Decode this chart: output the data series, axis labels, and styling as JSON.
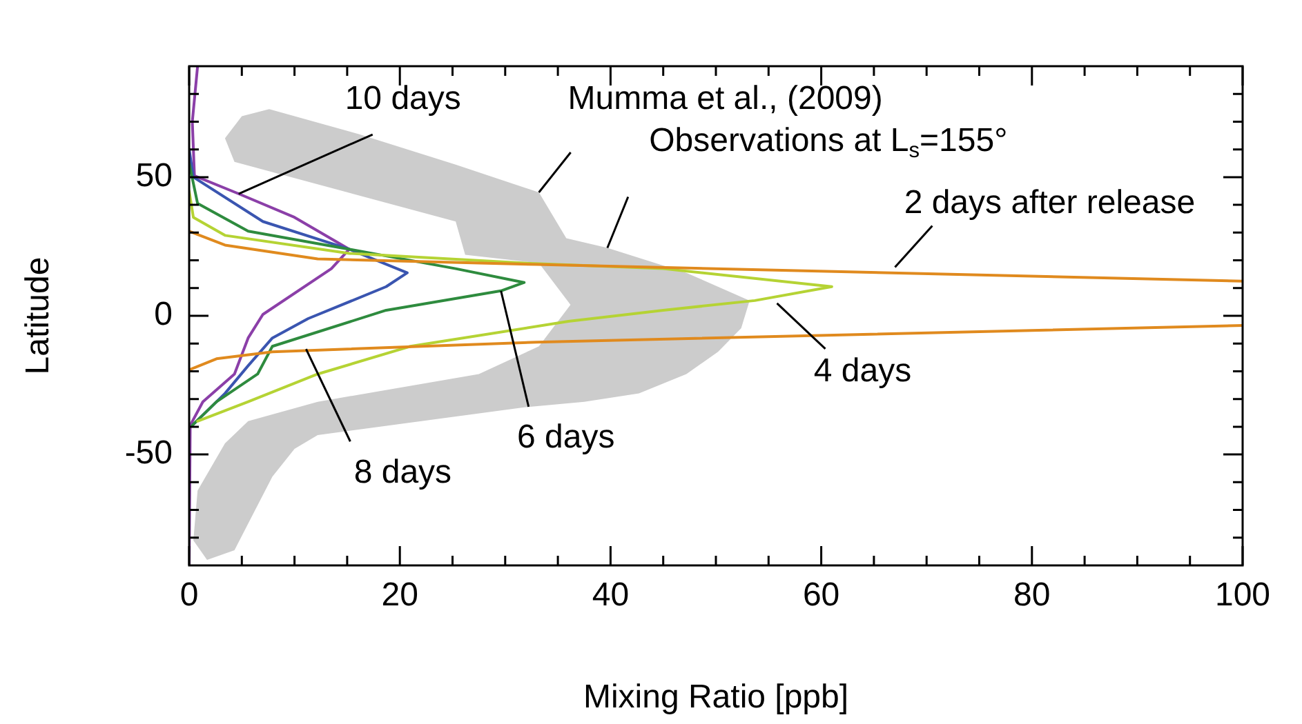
{
  "chart_data": {
    "type": "line",
    "xlabel": "Mixing Ratio [ppb]",
    "ylabel": "Latitude",
    "xlim": [
      0,
      100
    ],
    "ylim": [
      -90,
      90
    ],
    "xticks": [
      0,
      {
        "value": 5,
        "label": null
      },
      {
        "value": 10,
        "label": null
      },
      {
        "value": 15,
        "label": null
      },
      20,
      {
        "value": 25,
        "label": null
      },
      {
        "value": 30,
        "label": null
      },
      {
        "value": 35,
        "label": null
      },
      40,
      {
        "value": 45,
        "label": null
      },
      {
        "value": 50,
        "label": null
      },
      {
        "value": 55,
        "label": null
      },
      60,
      {
        "value": 65,
        "label": null
      },
      {
        "value": 70,
        "label": null
      },
      {
        "value": 75,
        "label": null
      },
      80,
      {
        "value": 85,
        "label": null
      },
      {
        "value": 90,
        "label": null
      },
      {
        "value": 95,
        "label": null
      },
      100
    ],
    "yticks": [
      {
        "value": -80,
        "label": null
      },
      {
        "value": -70,
        "label": null
      },
      {
        "value": -60,
        "label": null
      },
      -50,
      {
        "value": -40,
        "label": null
      },
      {
        "value": -30,
        "label": null
      },
      {
        "value": -20,
        "label": null
      },
      {
        "value": -10,
        "label": null
      },
      0,
      {
        "value": 10,
        "label": null
      },
      {
        "value": 20,
        "label": null
      },
      {
        "value": 30,
        "label": null
      },
      {
        "value": 40,
        "label": null
      },
      50,
      {
        "value": 60,
        "label": null
      },
      {
        "value": 70,
        "label": null
      },
      {
        "value": 80,
        "label": null
      }
    ],
    "grid": false,
    "legend": false,
    "marker": "none",
    "line_style": "solid",
    "series": [
      {
        "type": "area",
        "color": "#cccccc",
        "x": [
          3.4,
          5.0,
          7.6,
          16.1,
          25.3,
          33.2,
          35.8,
          39.7,
          47.2,
          53.2,
          52.4,
          50.2,
          47.2,
          42.7,
          37.5,
          31.8,
          12.2,
          10.0,
          7.9,
          4.3,
          1.7,
          0.4,
          0.8,
          3.4,
          5.6,
          12.2,
          27.5,
          33.2,
          36.2,
          33.2,
          26.2,
          25.3,
          4.3
        ],
        "values": [
          64,
          72,
          74.5,
          65.5,
          54.5,
          44.5,
          28,
          24.5,
          15.5,
          5.5,
          -4.5,
          -13,
          -21,
          -28,
          -31,
          -33,
          -43,
          -48,
          -58,
          -84.5,
          -88,
          -81,
          -63,
          -46,
          -38,
          -31,
          -21,
          -11,
          4,
          19,
          22,
          34,
          55.5
        ]
      },
      {
        "color": "#e08a1e",
        "x": [
          0,
          3.4,
          12.2,
          33,
          100
        ],
        "values": [
          30.5,
          25.5,
          20.5,
          18.5,
          12.5
        ]
      },
      {
        "color": "#e08a1e",
        "x": [
          100,
          33,
          7.9,
          2.6,
          0
        ],
        "values": [
          -3.5,
          -9.5,
          -13,
          -15.5,
          -19.5
        ]
      },
      {
        "color": "#b5d334",
        "x": [
          0,
          0.4,
          3.4,
          15.2,
          31.8,
          45,
          61,
          53.7,
          45,
          36,
          21,
          12.2,
          5.6,
          0.8
        ],
        "values": [
          45,
          35.5,
          29,
          22.5,
          19,
          17,
          10.5,
          5.5,
          2,
          -2,
          -11,
          -21,
          -31,
          -38
        ]
      },
      {
        "color": "#2e8b3e",
        "x": [
          0,
          0.8,
          5.6,
          15.2,
          25.3,
          31.8,
          29.6,
          18.7,
          7.9,
          6.5,
          2.6,
          0.3
        ],
        "values": [
          55,
          40.5,
          30.5,
          24,
          17,
          12,
          9,
          2,
          -11,
          -21,
          -31,
          -39.5
        ]
      },
      {
        "color": "#3a55b0",
        "x": [
          0,
          0.4,
          7,
          15.2,
          20.7,
          18.7,
          11.3,
          7.9,
          5.6,
          3.4,
          0.3
        ],
        "values": [
          60,
          50,
          34,
          24,
          15.5,
          10.5,
          -1,
          -8,
          -18,
          -28,
          -39.5
        ]
      },
      {
        "color": "#8b3fa8",
        "x": [
          0.8,
          0.3,
          0.5,
          4.7,
          10,
          15.2,
          13.5,
          7,
          5.6,
          4.3,
          1.3,
          0.1,
          0
        ],
        "values": [
          90,
          70,
          50.5,
          44,
          35.5,
          24,
          17,
          0.5,
          -8,
          -21,
          -31,
          -39.5,
          -90
        ]
      }
    ],
    "annotations": [
      {
        "text": "10 days",
        "x": 4.7,
        "y": 44
      },
      {
        "text": "8 days",
        "x": 11.1,
        "y": -12
      },
      {
        "text": "6 days",
        "x": 29.6,
        "y": 9
      },
      {
        "text": "4 days",
        "x": 55.8,
        "y": 4.5
      },
      {
        "text": "2 days after release",
        "x": 67,
        "y": 17.5
      },
      {
        "text": "Mumma et al., (2009)",
        "x": 33.2,
        "y": 44.5
      },
      {
        "text": "Observations at L$_{s}$=155°",
        "x": 39.7,
        "y": 24.5
      }
    ]
  }
}
